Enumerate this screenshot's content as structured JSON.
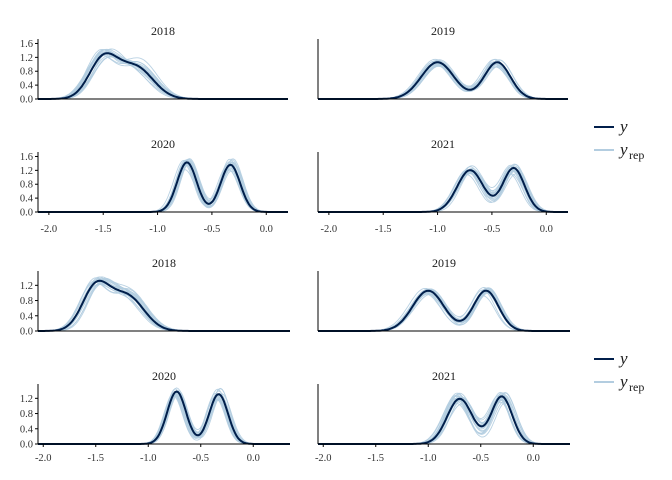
{
  "colors": {
    "y": "#011f4b",
    "y_rep": "#b3cde0",
    "axis": "#000000",
    "tick_text": "#333333"
  },
  "legend": {
    "y_label": "y",
    "yrep_label": "y",
    "yrep_sub": "rep"
  },
  "chart_data": [
    {
      "type": "area",
      "title": "",
      "xlabel": "",
      "ylabel": "",
      "xlim": [
        -2.1,
        0.2
      ],
      "x_ticks": [
        "-2.0",
        "-1.5",
        "-1.0",
        "-0.5",
        "0.0"
      ],
      "x_tick_values": [
        -2.0,
        -1.5,
        -1.0,
        -0.5,
        0.0
      ],
      "y_ticks": [
        "0.0",
        "0.4",
        "0.8",
        "1.2",
        "1.6"
      ],
      "y_tick_values": [
        0.0,
        0.4,
        0.8,
        1.2,
        1.6
      ],
      "ylim": [
        0,
        1.7
      ],
      "grid": false,
      "legend_position": "right",
      "series": [
        {
          "name": "y"
        },
        {
          "name": "y_rep"
        }
      ],
      "panels": [
        {
          "strip": "2018",
          "density_y": {
            "modes": [
              [
                -1.5,
                0.13,
                1.0
              ],
              [
                -1.2,
                0.16,
                0.8
              ]
            ],
            "peak": 1.32
          },
          "yrep_jitter": 0.15
        },
        {
          "strip": "2019",
          "density_y": {
            "modes": [
              [
                -1.0,
                0.15,
                1.0
              ],
              [
                -0.45,
                0.12,
                1.0
              ]
            ],
            "peak": 1.06
          },
          "yrep_jitter": 0.12
        },
        {
          "strip": "2020",
          "density_y": {
            "modes": [
              [
                -0.73,
                0.09,
                1.0
              ],
              [
                -0.33,
                0.09,
                0.95
              ]
            ],
            "peak": 1.43
          },
          "yrep_jitter": 0.12
        },
        {
          "strip": "2021",
          "density_y": {
            "modes": [
              [
                -0.7,
                0.12,
                1.0
              ],
              [
                -0.3,
                0.1,
                1.05
              ]
            ],
            "peak": 1.27
          },
          "yrep_jitter": 0.14
        }
      ]
    },
    {
      "type": "area",
      "title": "",
      "xlabel": "",
      "ylabel": "",
      "xlim": [
        -2.05,
        0.35
      ],
      "x_ticks": [
        "-2.0",
        "-1.5",
        "-1.0",
        "-0.5",
        "0.0"
      ],
      "x_tick_values": [
        -2.0,
        -1.5,
        -1.0,
        -0.5,
        0.0
      ],
      "y_ticks": [
        "0.0",
        "0.4",
        "0.8",
        "1.2"
      ],
      "y_tick_values": [
        0.0,
        0.4,
        0.8,
        1.2
      ],
      "ylim": [
        0,
        1.55
      ],
      "grid": false,
      "legend_position": "right",
      "series": [
        {
          "name": "y"
        },
        {
          "name": "y_rep"
        }
      ],
      "panels": [
        {
          "strip": "2018",
          "density_y": {
            "modes": [
              [
                -1.5,
                0.13,
                1.0
              ],
              [
                -1.2,
                0.16,
                0.8
              ]
            ],
            "peak": 1.32
          },
          "yrep_jitter": 0.15
        },
        {
          "strip": "2019",
          "density_y": {
            "modes": [
              [
                -1.0,
                0.15,
                1.0
              ],
              [
                -0.45,
                0.12,
                1.0
              ]
            ],
            "peak": 1.06
          },
          "yrep_jitter": 0.12
        },
        {
          "strip": "2020",
          "density_y": {
            "modes": [
              [
                -0.73,
                0.09,
                1.0
              ],
              [
                -0.33,
                0.09,
                0.95
              ]
            ],
            "peak": 1.38
          },
          "yrep_jitter": 0.12
        },
        {
          "strip": "2021",
          "density_y": {
            "modes": [
              [
                -0.7,
                0.12,
                1.0
              ],
              [
                -0.3,
                0.1,
                1.05
              ]
            ],
            "peak": 1.25
          },
          "yrep_jitter": 0.14
        }
      ]
    }
  ]
}
